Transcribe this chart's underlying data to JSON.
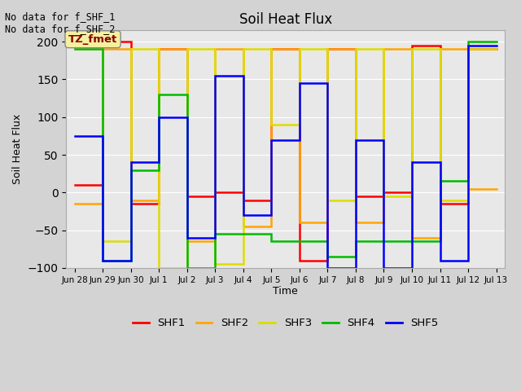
{
  "title": "Soil Heat Flux",
  "ylabel": "Soil Heat Flux",
  "xlabel": "Time",
  "ylim": [
    -100,
    215
  ],
  "yticks": [
    -100,
    -50,
    0,
    50,
    100,
    150,
    200
  ],
  "annotation_text": "No data for f_SHF_1\nNo data for f_SHF_2",
  "legend_label": "TZ_fmet",
  "legend_box_color": "#f5f0a0",
  "legend_box_text_color": "#8b0000",
  "colors": {
    "SHF1": "#ff0000",
    "SHF2": "#ffa500",
    "SHF3": "#dddd00",
    "SHF4": "#00bb00",
    "SHF5": "#0000ff"
  },
  "series": {
    "SHF1": {
      "x": [
        0,
        1,
        1,
        2,
        2,
        3,
        3,
        4,
        4,
        5,
        5,
        6,
        6,
        7,
        7,
        8,
        8,
        9,
        9,
        10,
        10,
        11,
        11,
        12,
        12,
        13,
        13,
        14,
        14,
        15
      ],
      "y": [
        10,
        10,
        200,
        200,
        -15,
        -15,
        190,
        190,
        -5,
        -5,
        0,
        0,
        -10,
        -10,
        190,
        190,
        -90,
        -90,
        190,
        190,
        -5,
        -5,
        0,
        0,
        195,
        195,
        -15,
        -15,
        190,
        190
      ]
    },
    "SHF2": {
      "x": [
        0,
        1,
        1,
        2,
        2,
        3,
        3,
        4,
        4,
        5,
        5,
        6,
        6,
        7,
        7,
        8,
        8,
        9,
        9,
        10,
        10,
        11,
        11,
        12,
        12,
        13,
        13,
        14,
        14,
        15
      ],
      "y": [
        -15,
        -15,
        190,
        190,
        -10,
        -10,
        190,
        190,
        -65,
        -65,
        190,
        190,
        -45,
        -45,
        190,
        190,
        -40,
        -40,
        190,
        190,
        -40,
        -40,
        190,
        190,
        -60,
        -60,
        190,
        190,
        5,
        5
      ]
    },
    "SHF3": {
      "x": [
        0,
        1,
        1,
        2,
        2,
        3,
        3,
        4,
        4,
        5,
        5,
        6,
        6,
        7,
        7,
        8,
        8,
        9,
        9,
        10,
        10,
        11,
        11,
        12,
        12,
        13,
        13,
        14,
        14,
        15
      ],
      "y": [
        190,
        190,
        -65,
        -65,
        190,
        190,
        -100,
        -100,
        190,
        190,
        -95,
        -95,
        190,
        190,
        90,
        90,
        190,
        190,
        -10,
        -10,
        190,
        190,
        -5,
        -5,
        190,
        190,
        -10,
        -10,
        190,
        190
      ]
    },
    "SHF4": {
      "x": [
        0,
        1,
        1,
        2,
        2,
        3,
        3,
        4,
        4,
        5,
        5,
        6,
        6,
        7,
        7,
        8,
        8,
        9,
        9,
        10,
        10,
        11,
        11,
        12,
        12,
        13,
        13,
        14,
        14,
        15
      ],
      "y": [
        190,
        190,
        -90,
        -90,
        30,
        30,
        130,
        130,
        -100,
        -100,
        -55,
        -55,
        -55,
        -55,
        -65,
        -65,
        -65,
        -65,
        -85,
        -85,
        -65,
        -65,
        -65,
        -65,
        -65,
        -65,
        15,
        15,
        200,
        200
      ]
    },
    "SHF5": {
      "x": [
        0,
        1,
        1,
        2,
        2,
        3,
        3,
        4,
        4,
        5,
        5,
        6,
        6,
        7,
        7,
        8,
        8,
        9,
        9,
        10,
        10,
        11,
        11,
        12,
        12,
        13,
        13,
        14,
        14,
        15
      ],
      "y": [
        75,
        75,
        -90,
        -90,
        40,
        40,
        100,
        100,
        -60,
        -60,
        155,
        155,
        -30,
        -30,
        70,
        70,
        145,
        145,
        -100,
        -100,
        70,
        70,
        -100,
        -100,
        40,
        40,
        -90,
        -90,
        195,
        195
      ]
    }
  },
  "x_tick_positions": [
    0,
    1,
    2,
    3,
    4,
    5,
    6,
    7,
    8,
    9,
    10,
    11,
    12,
    13,
    14,
    15
  ],
  "x_tick_labels": [
    "Jun 28",
    "Jun 29",
    "Jun 30",
    "Jul 1",
    "Jul 2",
    "Jul 3",
    "Jul 4",
    "Jul 5",
    "Jul 6",
    "Jul 7",
    "Jul 8",
    "Jul 9",
    "Jul 10",
    "Jul 11",
    "Jul 12",
    "Jul 13"
  ]
}
